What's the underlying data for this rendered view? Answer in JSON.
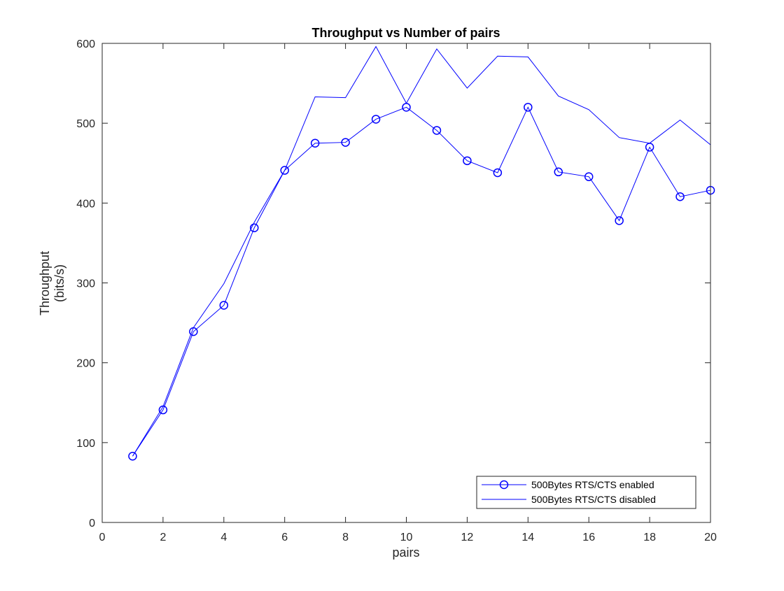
{
  "chart_data": {
    "type": "line",
    "title": "Throughput vs Number of pairs",
    "xlabel": "pairs",
    "ylabel": [
      "Throughput",
      "(bits/s)"
    ],
    "xlim": [
      0,
      20
    ],
    "ylim": [
      0,
      600
    ],
    "xticks": [
      0,
      2,
      4,
      6,
      8,
      10,
      12,
      14,
      16,
      18,
      20
    ],
    "yticks": [
      0,
      100,
      200,
      300,
      400,
      500,
      600
    ],
    "grid": false,
    "legend_location": "bottom-right",
    "x": [
      1,
      2,
      3,
      4,
      5,
      6,
      7,
      8,
      9,
      10,
      11,
      12,
      13,
      14,
      15,
      16,
      17,
      18,
      19,
      20
    ],
    "series": [
      {
        "name": "500Bytes RTS/CTS enabled",
        "color": "#0000ff",
        "marker": "circle",
        "values": [
          83,
          141,
          239,
          272,
          369,
          441,
          475,
          476,
          505,
          520,
          491,
          453,
          438,
          520,
          439,
          433,
          378,
          470,
          408,
          416
        ]
      },
      {
        "name": "500Bytes RTS/CTS disabled",
        "color": "#0000ff",
        "marker": "none",
        "values": [
          83,
          145,
          244,
          299,
          376,
          441,
          533,
          532,
          596,
          525,
          593,
          544,
          584,
          583,
          534,
          517,
          482,
          475,
          504,
          473
        ]
      }
    ]
  }
}
